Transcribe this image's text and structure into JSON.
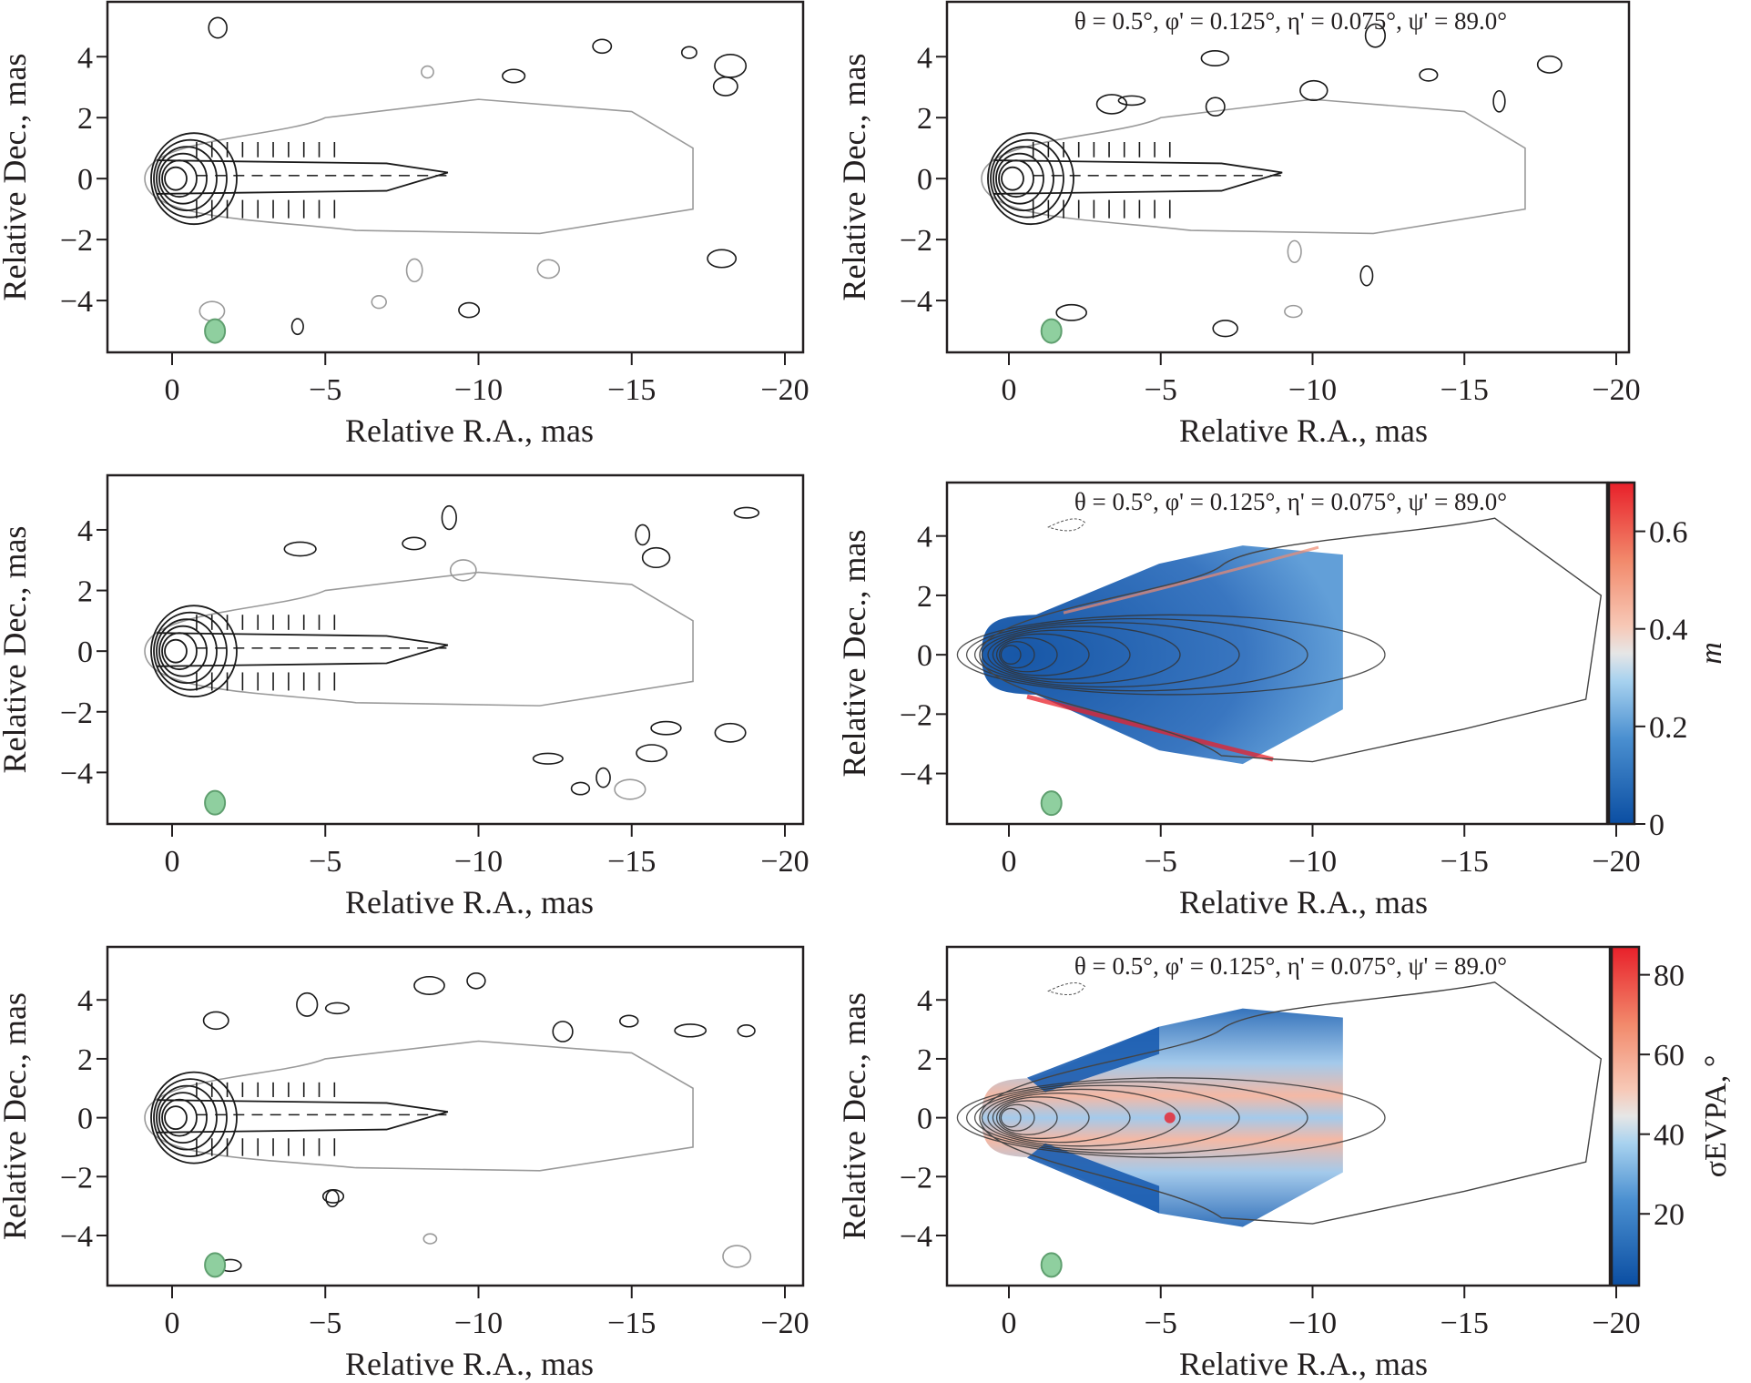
{
  "figure": {
    "description": "Six-panel VLBI jet maps: total intensity contours with EVPA ticks (left, top-right) and polarization maps (right middle/bottom) with colorbars",
    "colors": {
      "contour_black": "#1a1a1a",
      "contour_grey": "#9a9a9a",
      "beam_fill": "#8fcf9f",
      "beam_stroke": "#5f9f6f",
      "cmap_low": "#0b4ea2",
      "cmap_mid": "#e6e6e6",
      "cmap_high": "#e8202a"
    }
  },
  "chart_data": [
    {
      "id": "panel-top-left",
      "type": "contour",
      "title": "",
      "xlabel": "Relative R.A., mas",
      "ylabel": "Relative Dec., mas",
      "xlim": [
        2,
        -20.5
      ],
      "ylim": [
        -5.7,
        5.8
      ],
      "xticks": [
        0,
        -5,
        -10,
        -15,
        -20
      ],
      "xtick_labels": [
        "0",
        "−5",
        "−10",
        "−15",
        "−20"
      ],
      "yticks": [
        4,
        2,
        0,
        -2,
        -4
      ],
      "ytick_labels": [
        "4",
        "2",
        "0",
        "−2",
        "−4"
      ],
      "beam": {
        "x": -1.4,
        "y": -5.0
      },
      "jet_extent_mas": 17,
      "evpa_orientation": "perpendicular near core, parallel along ridge"
    },
    {
      "id": "panel-top-right",
      "type": "contour",
      "title": "θ = 0.5°, φ' = 0.125°, η' = 0.075°, ψ' = 89.0°",
      "xlabel": "Relative R.A., mas",
      "ylabel": "Relative Dec., mas",
      "xlim": [
        2,
        -20.5
      ],
      "ylim": [
        -5.7,
        5.8
      ],
      "xticks": [
        0,
        -5,
        -10,
        -15,
        -20
      ],
      "xtick_labels": [
        "0",
        "−5",
        "−10",
        "−15",
        "−20"
      ],
      "yticks": [
        4,
        2,
        0,
        -2,
        -4
      ],
      "ytick_labels": [
        "4",
        "2",
        "0",
        "−2",
        "−4"
      ],
      "beam": {
        "x": -1.4,
        "y": -5.0
      },
      "jet_extent_mas": 19.5
    },
    {
      "id": "panel-middle-left",
      "type": "contour",
      "title": "",
      "xlabel": "Relative R.A., mas",
      "ylabel": "Relative Dec., mas",
      "xlim": [
        2,
        -20.5
      ],
      "ylim": [
        -5.7,
        5.8
      ],
      "xticks": [
        0,
        -5,
        -10,
        -15,
        -20
      ],
      "xtick_labels": [
        "0",
        "−5",
        "−10",
        "−15",
        "−20"
      ],
      "yticks": [
        4,
        2,
        0,
        -2,
        -4
      ],
      "ytick_labels": [
        "4",
        "2",
        "0",
        "−2",
        "−4"
      ],
      "beam": {
        "x": -1.4,
        "y": -5.0
      },
      "jet_extent_mas": 19
    },
    {
      "id": "panel-middle-right",
      "type": "heatmap",
      "title": "θ = 0.5°, φ' = 0.125°, η' = 0.075°, ψ' = 89.0°",
      "xlabel": "Relative R.A., mas",
      "ylabel": "Relative Dec., mas",
      "xlim": [
        2,
        -20.5
      ],
      "ylim": [
        -5.7,
        5.8
      ],
      "xticks": [
        0,
        -5,
        -10,
        -15,
        -20
      ],
      "xtick_labels": [
        "0",
        "−5",
        "−10",
        "−15",
        "−20"
      ],
      "yticks": [
        4,
        2,
        0,
        -2,
        -4
      ],
      "ytick_labels": [
        "4",
        "2",
        "0",
        "−2",
        "−4"
      ],
      "beam": {
        "x": -1.4,
        "y": -5.0
      },
      "colorbar": {
        "label": "m",
        "range": [
          0,
          0.7
        ],
        "ticks": [
          0,
          0.2,
          0.4,
          0.6
        ],
        "tick_labels": [
          "0",
          "0.2",
          "0.4",
          "0.6"
        ],
        "cmap": "RdBu_r"
      },
      "typical_values": {
        "jet_core_spine": 0.05,
        "jet_edges": 0.6
      }
    },
    {
      "id": "panel-bottom-left",
      "type": "contour",
      "title": "",
      "xlabel": "Relative R.A., mas",
      "ylabel": "Relative Dec., mas",
      "xlim": [
        2,
        -20.5
      ],
      "ylim": [
        -5.7,
        5.8
      ],
      "xticks": [
        0,
        -5,
        -10,
        -15,
        -20
      ],
      "xtick_labels": [
        "0",
        "−5",
        "−10",
        "−15",
        "−20"
      ],
      "yticks": [
        4,
        2,
        0,
        -2,
        -4
      ],
      "ytick_labels": [
        "4",
        "2",
        "0",
        "−2",
        "−4"
      ],
      "beam": {
        "x": -1.4,
        "y": -5.0
      },
      "jet_extent_mas": 19
    },
    {
      "id": "panel-bottom-right",
      "type": "heatmap",
      "title": "θ = 0.5°, φ' = 0.125°, η' = 0.075°, ψ' = 89.0°",
      "xlabel": "Relative R.A., mas",
      "ylabel": "Relative Dec., mas",
      "xlim": [
        2,
        -20.5
      ],
      "ylim": [
        -5.7,
        5.8
      ],
      "xticks": [
        0,
        -5,
        -10,
        -15,
        -20
      ],
      "xtick_labels": [
        "0",
        "−5",
        "−10",
        "−15",
        "−20"
      ],
      "yticks": [
        4,
        2,
        0,
        -2,
        -4
      ],
      "ytick_labels": [
        "4",
        "2",
        "0",
        "−2",
        "−4"
      ],
      "beam": {
        "x": -1.4,
        "y": -5.0
      },
      "colorbar": {
        "label": "σEVPA, °",
        "label_main": "σ",
        "label_sub": "EVPA",
        "label_suffix": ", °",
        "range": [
          2,
          87
        ],
        "ticks": [
          20,
          40,
          60,
          80
        ],
        "tick_labels": [
          "20",
          "40",
          "60",
          "80"
        ],
        "cmap": "RdBu_r"
      },
      "typical_values": {
        "jet_edges": 5,
        "jet_center_ridge": 60,
        "peak": 85
      }
    }
  ]
}
